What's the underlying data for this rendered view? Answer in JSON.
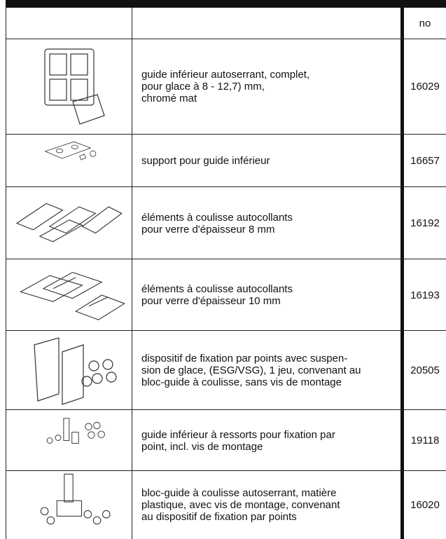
{
  "table": {
    "header": [
      "",
      "",
      "no"
    ],
    "rows": [
      {
        "description": [
          "guide inférieur autoserrant, complet,",
          "pour glace à 8 - 12,7) mm,",
          "chromé mat"
        ],
        "no": "16029"
      },
      {
        "description": [
          "support pour guide inférieur"
        ],
        "no": "16657"
      },
      {
        "description": [
          "éléments à coulisse autocollants",
          "pour verre d'épaisseur 8 mm"
        ],
        "no": "16192"
      },
      {
        "description": [
          "éléments à coulisse autocollants",
          "pour verre d'épaisseur 10 mm"
        ],
        "no": "16193"
      },
      {
        "description": [
          "dispositif de fixation par points avec suspen-",
          "sion de glace, (ESG/VSG), 1 jeu, convenant au",
          "bloc-guide à coulisse, sans vis de montage"
        ],
        "no": "20505"
      },
      {
        "description": [
          "guide inférieur à ressorts pour fixation par",
          "point, incl. vis de montage"
        ],
        "no": "19118"
      },
      {
        "description": [
          "bloc-guide à coulisse autoserrant, matière",
          "plastique, avec vis de montage, convenant",
          "au dispositif de fixation par points"
        ],
        "no": "16020"
      }
    ]
  }
}
